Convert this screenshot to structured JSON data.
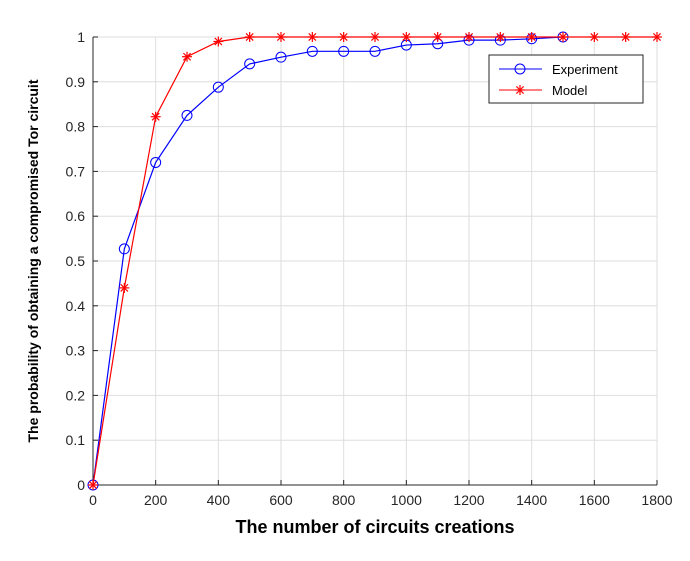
{
  "chart_data": {
    "type": "line",
    "title": "",
    "xlabel": "The number of circuits creations",
    "ylabel": "The probability of obtaining a compromised Tor circuit",
    "xlim": [
      0,
      1800
    ],
    "ylim": [
      0,
      1
    ],
    "xticks": [
      0,
      200,
      400,
      600,
      800,
      1000,
      1200,
      1400,
      1600,
      1800
    ],
    "yticks": [
      0,
      0.1,
      0.2,
      0.3,
      0.4,
      0.5,
      0.6,
      0.7,
      0.8,
      0.9,
      1
    ],
    "grid": true,
    "legend_position": "top-right",
    "series": [
      {
        "name": "Experiment",
        "color": "#0000ff",
        "marker": "circle",
        "x": [
          0,
          100,
          200,
          300,
          400,
          500,
          600,
          700,
          800,
          900,
          1000,
          1100,
          1200,
          1300,
          1400,
          1500
        ],
        "y": [
          0,
          0.527,
          0.72,
          0.825,
          0.888,
          0.94,
          0.955,
          0.968,
          0.968,
          0.968,
          0.982,
          0.985,
          0.993,
          0.993,
          0.996,
          1.0
        ]
      },
      {
        "name": "Model",
        "color": "#ff0000",
        "marker": "asterisk",
        "x": [
          0,
          100,
          200,
          300,
          400,
          500,
          600,
          700,
          800,
          900,
          1000,
          1100,
          1200,
          1300,
          1400,
          1500,
          1600,
          1700,
          1800
        ],
        "y": [
          0,
          0.44,
          0.822,
          0.956,
          0.99,
          1.0,
          1.0,
          1.0,
          1.0,
          1.0,
          1.0,
          1.0,
          1.0,
          1.0,
          1.0,
          1.0,
          1.0,
          1.0,
          1.0
        ]
      }
    ]
  }
}
